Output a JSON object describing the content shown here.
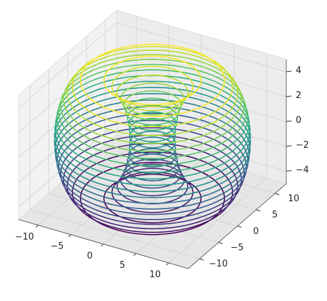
{
  "chart_data": {
    "type": "contour3d",
    "colormap": "viridis",
    "xlim": [
      -13,
      13
    ],
    "ylim": [
      -13,
      13
    ],
    "zlim": [
      -5,
      5
    ],
    "xticks": [
      {
        "value": -10,
        "label": "−10"
      },
      {
        "value": -5,
        "label": "−5"
      },
      0,
      5,
      10
    ],
    "yticks": [
      {
        "value": -10,
        "label": "−10"
      },
      {
        "value": -5,
        "label": "−5"
      },
      0,
      5,
      10
    ],
    "zticks": [
      {
        "value": -4,
        "label": "−4"
      },
      {
        "value": -2,
        "label": "−2"
      },
      0,
      2,
      4
    ],
    "grid": true,
    "levels": [
      -4.75,
      -4.25,
      -3.75,
      -3.25,
      -2.75,
      -2.25,
      -1.75,
      -1.25,
      -0.75,
      -0.25,
      0.25,
      0.75,
      1.25,
      1.75,
      2.25,
      2.75,
      3.25,
      3.75,
      4.25,
      4.75
    ],
    "outer_radius": [
      9.56,
      10.63,
      11.31,
      11.8,
      12.18,
      12.47,
      12.68,
      12.84,
      12.94,
      12.99,
      12.99,
      12.94,
      12.84,
      12.68,
      12.47,
      12.18,
      11.8,
      11.31,
      10.63,
      9.56
    ],
    "inner_radius": [
      6.44,
      5.37,
      4.69,
      4.2,
      3.82,
      3.53,
      3.32,
      3.16,
      3.06,
      3.01,
      3.01,
      3.06,
      3.16,
      3.32,
      3.53,
      3.82,
      4.2,
      4.69,
      5.37,
      6.44
    ]
  }
}
